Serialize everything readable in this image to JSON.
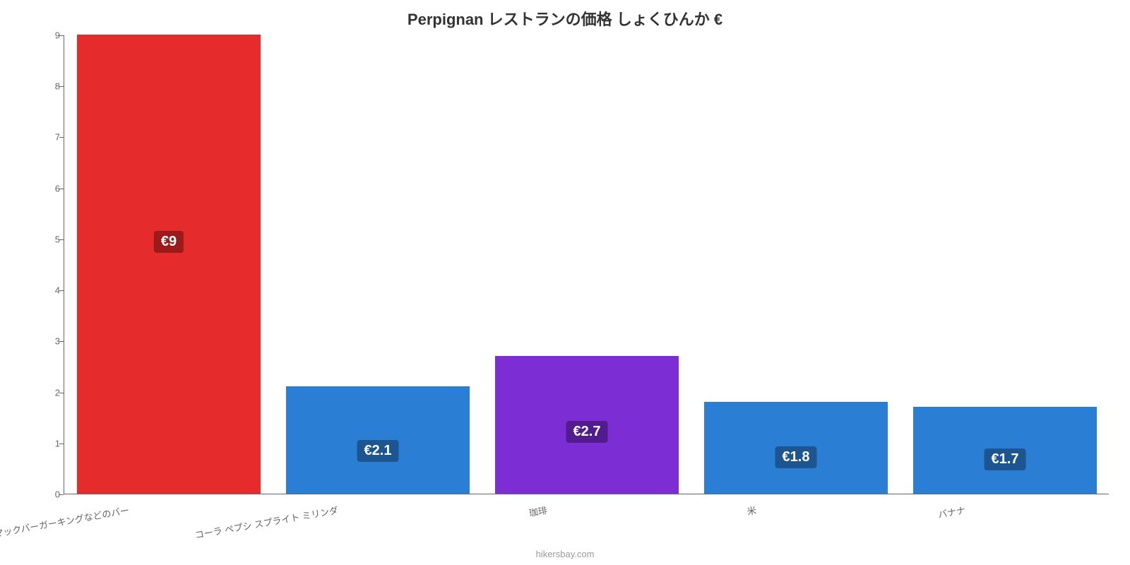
{
  "chart": {
    "type": "bar",
    "title": "Perpignan レストランの価格 しょくひんか €",
    "title_fontsize": 22,
    "title_color": "#333333",
    "credit": "hikersbay.com",
    "credit_color": "#999999",
    "background_color": "#ffffff",
    "axis_color": "#666666",
    "tick_label_color": "#666666",
    "tick_fontsize": 13,
    "ylim": [
      0,
      9
    ],
    "ytick_step": 1,
    "bar_width_ratio": 0.88,
    "value_label_fontsize": 20,
    "value_label_text_color": "#ffffff",
    "value_label_bg_opacity": 0.85,
    "x_label_rotation_deg": -10,
    "categories": [
      "マックバーガーキングなどのバー",
      "コーラ ペプシ スプライト ミリンダ",
      "珈琲",
      "米",
      "バナナ"
    ],
    "values": [
      9,
      2.1,
      2.7,
      1.8,
      1.7
    ],
    "value_labels": [
      "€9",
      "€2.1",
      "€2.7",
      "€1.8",
      "€1.7"
    ],
    "bar_colors": [
      "#e52b2b",
      "#2a7fd4",
      "#7c2ed4",
      "#2a7fd4",
      "#2a7fd4"
    ],
    "value_label_bg_colors": [
      "#9b1b1b",
      "#1c558f",
      "#521c8f",
      "#1c558f",
      "#1c558f"
    ],
    "value_label_offsets": [
      0.45,
      0.6,
      0.55,
      0.6,
      0.6
    ]
  }
}
